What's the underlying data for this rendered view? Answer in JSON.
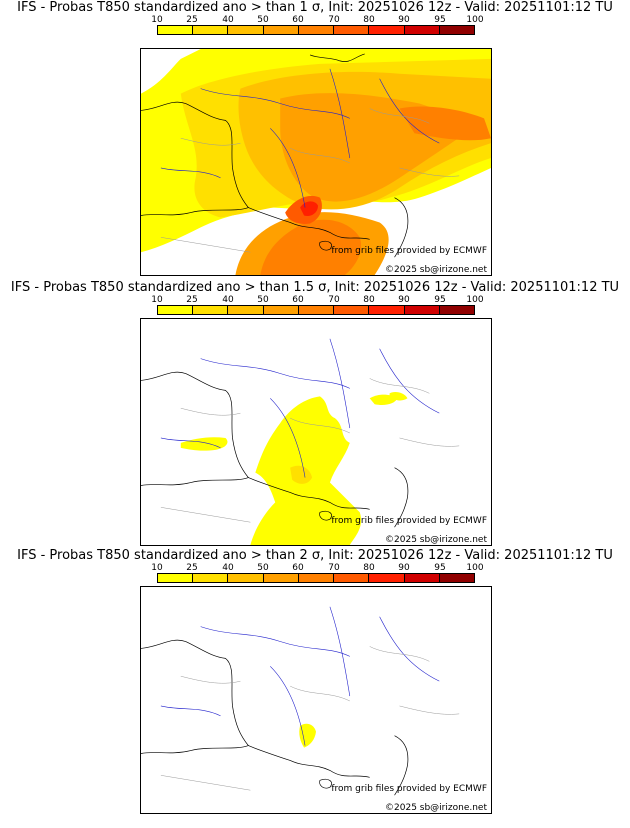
{
  "colorbar": {
    "ticks": [
      "10",
      "25",
      "40",
      "50",
      "60",
      "70",
      "80",
      "90",
      "95",
      "100"
    ],
    "colors": [
      "#ffff00",
      "#ffe000",
      "#ffc000",
      "#ffa000",
      "#ff8000",
      "#ff5a00",
      "#ff2000",
      "#d00000",
      "#900000"
    ]
  },
  "panels": [
    {
      "title": "IFS - Probas T850  standardized ano > than 1 σ, Init: 20251026 12z - Valid: 20251101:12 TU",
      "source": "from grib files provided by ECMWF",
      "copyright": "©2025 sb@irizone.net"
    },
    {
      "title": "IFS - Probas T850  standardized ano > than 1.5 σ, Init: 20251026 12z - Valid: 20251101:12 TU",
      "source": "from grib files provided by ECMWF",
      "copyright": "©2025 sb@irizone.net"
    },
    {
      "title": "IFS - Probas T850  standardized ano > than 2 σ, Init: 20251026 12z - Valid: 20251101:12 TU",
      "source": "from grib files provided by ECMWF",
      "copyright": "©2025 sb@irizone.net"
    }
  ]
}
